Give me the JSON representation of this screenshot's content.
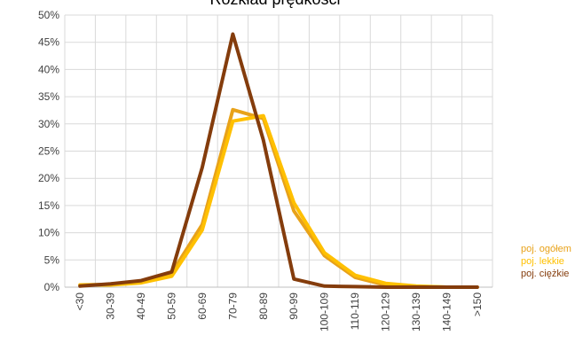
{
  "chart_data": {
    "type": "line",
    "title": "Rozkład prędkości",
    "xlabel": "",
    "ylabel": "",
    "categories": [
      "<30",
      "30-39",
      "40-49",
      "50-59",
      "60-69",
      "70-79",
      "80-89",
      "90-99",
      "100-109",
      "110-119",
      "120-129",
      "130-139",
      "140-149",
      ">150"
    ],
    "ylim": [
      0,
      0.5
    ],
    "yticks": [
      "0%",
      "5%",
      "10%",
      "15%",
      "20%",
      "25%",
      "30%",
      "35%",
      "40%",
      "45%",
      "50%"
    ],
    "grid": "on",
    "legend_position": "right",
    "series": [
      {
        "name": "poj. ogółem",
        "color": "#e8a21a",
        "values": [
          0.004,
          0.005,
          0.009,
          0.026,
          0.115,
          0.326,
          0.31,
          0.14,
          0.058,
          0.018,
          0.004,
          0.001,
          0.0,
          0.0
        ]
      },
      {
        "name": "poj. lekkie",
        "color": "#ffc000",
        "values": [
          0.004,
          0.004,
          0.008,
          0.02,
          0.105,
          0.305,
          0.315,
          0.155,
          0.063,
          0.022,
          0.007,
          0.002,
          0.0,
          0.0
        ]
      },
      {
        "name": "poj. ciężkie",
        "color": "#843c0c",
        "values": [
          0.002,
          0.006,
          0.012,
          0.028,
          0.22,
          0.465,
          0.27,
          0.015,
          0.002,
          0.001,
          0.0,
          0.0,
          0.0,
          0.0
        ]
      }
    ]
  }
}
